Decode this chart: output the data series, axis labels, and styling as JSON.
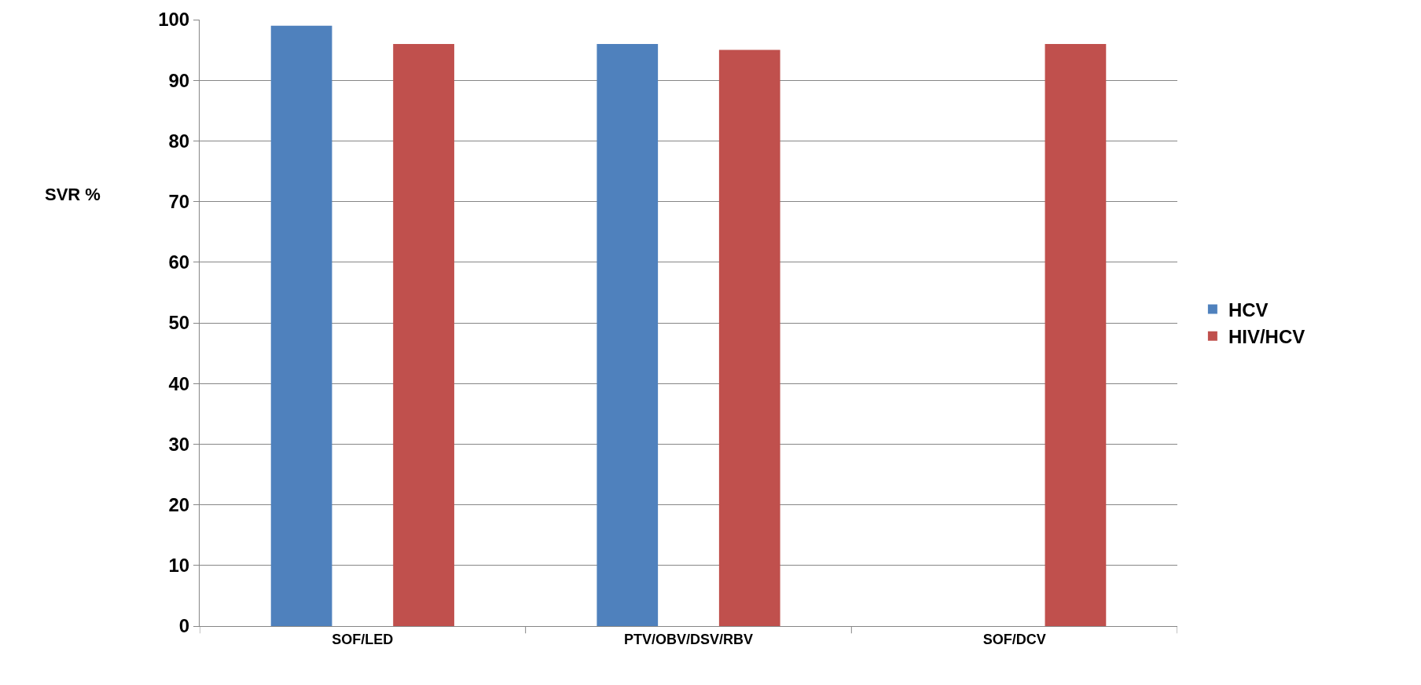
{
  "chart_data": {
    "type": "bar",
    "ylabel": "SVR %",
    "categories": [
      "SOF/LED",
      "PTV/OBV/DSV/RBV",
      "SOF/DCV"
    ],
    "series": [
      {
        "name": "HCV",
        "color": "#4f81bd",
        "values": [
          99,
          96,
          null
        ]
      },
      {
        "name": "HIV/HCV",
        "color": "#c0504d",
        "values": [
          96,
          95,
          96
        ]
      }
    ],
    "ylim": [
      0,
      100
    ],
    "yticks": [
      0,
      10,
      20,
      30,
      40,
      50,
      60,
      70,
      80,
      90,
      100
    ],
    "grid": "y",
    "legend": "right"
  }
}
